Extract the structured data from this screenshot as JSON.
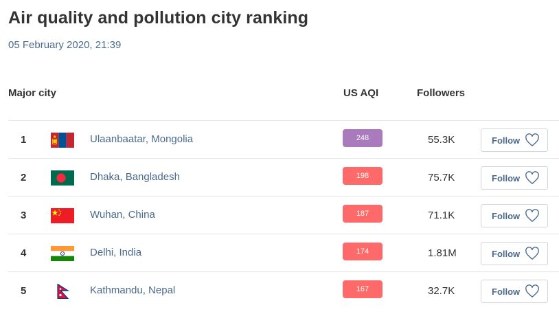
{
  "page": {
    "title": "Air quality and pollution city ranking",
    "timestamp": "05 February 2020, 21:39"
  },
  "table": {
    "headers": {
      "city": "Major city",
      "aqi": "US AQI",
      "followers": "Followers"
    },
    "follow_label": "Follow",
    "rows": [
      {
        "rank": "1",
        "city": "Ulaanbaatar, Mongolia",
        "flag": "mongolia-flag-icon",
        "aqi": "248",
        "aqi_color": "#a97abc",
        "followers": "55.3K"
      },
      {
        "rank": "2",
        "city": "Dhaka, Bangladesh",
        "flag": "bangladesh-flag-icon",
        "aqi": "198",
        "aqi_color": "#fe6a69",
        "followers": "75.7K"
      },
      {
        "rank": "3",
        "city": "Wuhan, China",
        "flag": "china-flag-icon",
        "aqi": "187",
        "aqi_color": "#fe6a69",
        "followers": "71.1K"
      },
      {
        "rank": "4",
        "city": "Delhi, India",
        "flag": "india-flag-icon",
        "aqi": "174",
        "aqi_color": "#fe6a69",
        "followers": "1.81M"
      },
      {
        "rank": "5",
        "city": "Kathmandu, Nepal",
        "flag": "nepal-flag-icon",
        "aqi": "167",
        "aqi_color": "#fe6a69",
        "followers": "32.7K"
      }
    ]
  }
}
